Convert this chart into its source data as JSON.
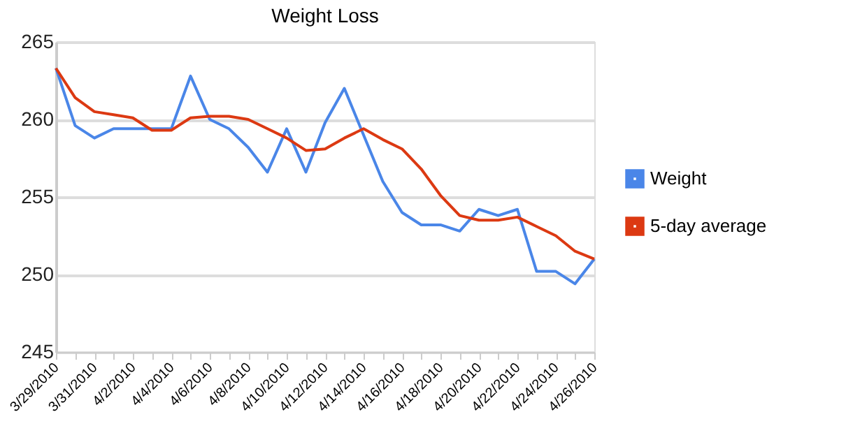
{
  "chart_data": {
    "type": "line",
    "title": "Weight Loss",
    "categories": [
      "3/29/2010",
      null,
      "3/31/2010",
      null,
      "4/2/2010",
      null,
      "4/4/2010",
      null,
      "4/6/2010",
      null,
      "4/8/2010",
      null,
      "4/10/2010",
      null,
      "4/12/2010",
      null,
      "4/14/2010",
      null,
      "4/16/2010",
      null,
      "4/18/2010",
      null,
      "4/20/2010",
      null,
      "4/22/2010",
      null,
      "4/24/2010",
      null,
      "4/26/2010"
    ],
    "series": [
      {
        "name": "Weight",
        "color": "#4a86e8",
        "values": [
          263.3,
          259.6,
          258.8,
          259.4,
          259.4,
          259.4,
          259.4,
          262.8,
          260.0,
          259.4,
          258.2,
          256.6,
          259.4,
          256.6,
          259.8,
          262.0,
          259.0,
          256.0,
          254.0,
          253.2,
          253.2,
          252.8,
          254.2,
          253.8,
          254.2,
          250.2,
          250.2,
          249.4,
          251.0
        ]
      },
      {
        "name": "5-day average",
        "color": "#dc3912",
        "values": [
          263.3,
          261.4,
          260.5,
          260.3,
          260.1,
          259.3,
          259.3,
          260.1,
          260.2,
          260.2,
          260.0,
          259.4,
          258.8,
          258.0,
          258.1,
          258.8,
          259.4,
          258.7,
          258.1,
          256.8,
          255.1,
          253.8,
          253.5,
          253.5,
          253.7,
          253.1,
          252.5,
          251.5,
          251.0
        ]
      }
    ],
    "ylim": [
      245,
      265
    ],
    "yticks": [
      245,
      250,
      255,
      260,
      265
    ],
    "grid": "y",
    "legend": "right",
    "marker": "none",
    "line_style": "solid"
  }
}
